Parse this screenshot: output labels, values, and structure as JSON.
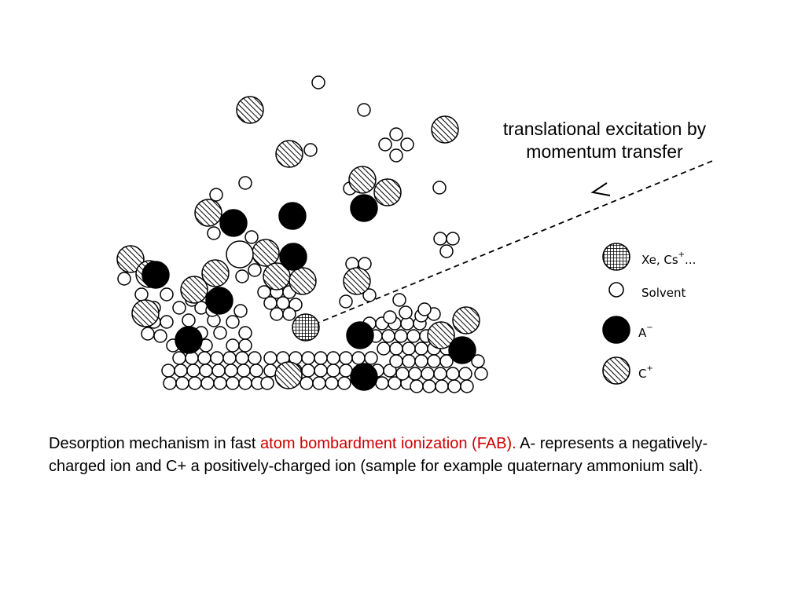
{
  "annotation": {
    "line1": "translational excitation by",
    "line2": "momentum transfer"
  },
  "legend": [
    {
      "label": "Xe, Cs",
      "sup": "+",
      "suffix": "...",
      "pattern": "crosshatch"
    },
    {
      "label": "Solvent",
      "sup": "",
      "suffix": "",
      "pattern": "open"
    },
    {
      "label": "A",
      "sup": "−",
      "suffix": "",
      "pattern": "solid"
    },
    {
      "label": "C",
      "sup": "+",
      "suffix": "",
      "pattern": "hatched"
    }
  ],
  "caption": {
    "before": "Desorption mechanism in fast ",
    "highlight": "atom bombardment ionization (FAB).",
    "after": " A- represents a negatively-charged ion and C+ a positively-charged ion (sample for example quaternary ammonium salt)."
  },
  "colors": {
    "highlight": "#cc0000",
    "ink": "#000000"
  }
}
